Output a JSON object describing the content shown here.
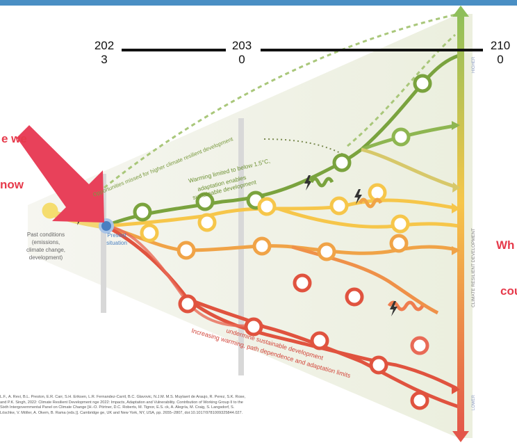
{
  "years": {
    "y2023_a": "202",
    "y2023_b": "3",
    "y2030_a": "203",
    "y2030_b": "0",
    "y2100_a": "210",
    "y2100_b": "0"
  },
  "notes": {
    "where_we_now_a": "e we",
    "where_we_now_b": "now",
    "right_a": "Wh",
    "right_b": "cou"
  },
  "diagram": {
    "past_conditions": [
      "Past conditions",
      "(emissions,",
      "climate change,",
      "development)"
    ],
    "present": [
      "Present",
      "situation"
    ],
    "opportunities": "Opportunities missed for higher climate resilient development",
    "warming_limited": [
      "Warming limited to below 1.5°C,",
      "adaptation enables",
      "sustainable development"
    ],
    "increasing_warming": [
      "Increasing warming, path dependence and adaptation limits",
      "undermine sustainable development"
    ],
    "axis_label": "CLIMATE RESILIENT DEVELOPMENT",
    "higher": "HIGHER",
    "lower": "LOWER"
  },
  "citation": "L.F., A. Revi, B.L. Preston, E.R. Carr, S.H. Eriksen, L.R. Fernandez-Carril, B.C. Glavovic, N.J.M. M.S. Muylaert de Araujo, R. Perez, S.K. Rose, and P.K. Singh, 2022: Climate Resilient Development nge 2022: Impacts, Adaptation and Vulnerability. Contribution of Working Group II to the Sixth Intergovernmental Panel on Climate Change [H.-O. Pörtner, D.C. Roberts, M. Tignor, E.S. ck, A. Alegría, M. Craig, S. Langsdorf, S. Löschke, V. Möller, A. Okem, B. Rama (eds.)]. Cambridge ge, UK and New York, NY, USA, pp. 2655–2807, doi:10.1017/9781009325844.027.",
  "colors": {
    "accent_red": "#e63a4b",
    "green": "#7aa33e",
    "orange": "#f0a347",
    "red": "#e0533f",
    "yellow": "#f3d466",
    "topbar": "#4a8fc4"
  }
}
